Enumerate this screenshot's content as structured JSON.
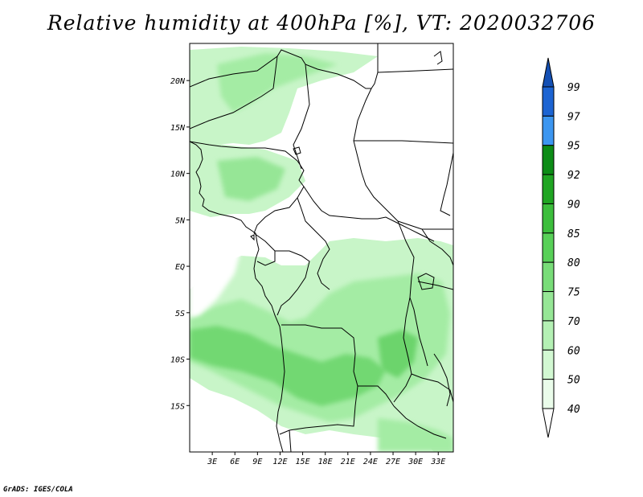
{
  "title": "Relative humidity at 400hPa [%], VT: 2020032706",
  "credit": "GrADS: IGES/COLA",
  "map": {
    "lon_range": [
      0,
      35
    ],
    "lat_range": [
      -20,
      24
    ],
    "lon_ticks": [
      "3E",
      "6E",
      "9E",
      "12E",
      "15E",
      "18E",
      "21E",
      "24E",
      "27E",
      "30E",
      "33E"
    ],
    "lat_ticks": [
      "20N",
      "15N",
      "10N",
      "5N",
      "EQ",
      "5S",
      "10S",
      "15S"
    ]
  },
  "colorbar": {
    "levels": [
      "99",
      "97",
      "95",
      "92",
      "90",
      "85",
      "80",
      "75",
      "70",
      "60",
      "50",
      "40"
    ],
    "colors": {
      "97-99": "#1c64d2",
      "95-97": "#3c96f0",
      "92-95": "#0c8c16",
      "90-92": "#1fa522",
      "85-90": "#3cbe3c",
      "80-85": "#58d058",
      "75-80": "#78dc78",
      "70-75": "#96e696",
      "60-70": "#b4f0b4",
      "50-60": "#d2f8d2",
      "40-50": "#eafcea"
    }
  }
}
